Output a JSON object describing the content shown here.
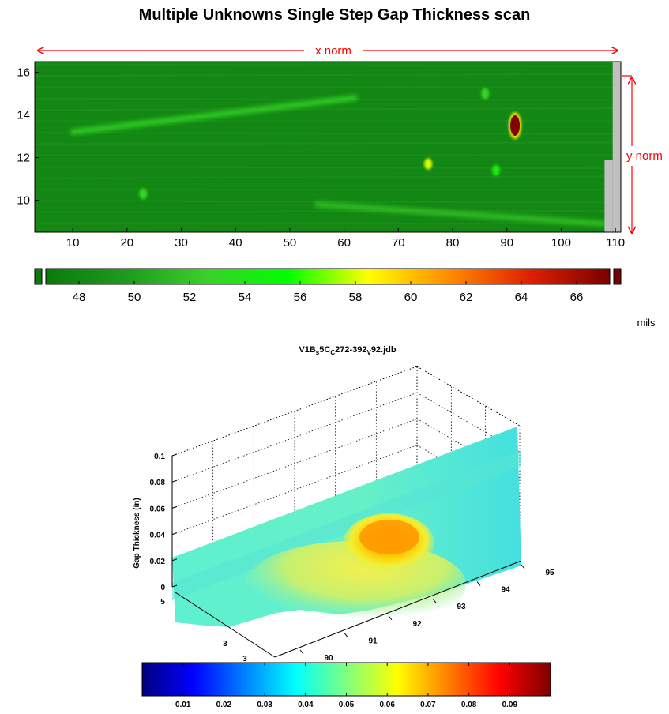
{
  "title": "Multiple Unknowns Single Step Gap Thickness scan",
  "colors": {
    "annotation": "#ff0000",
    "background_green": "#1a8f1a",
    "masked_area": "#c0c0c0"
  },
  "chart_data": [
    {
      "type": "heatmap",
      "title": "Multiple Unknowns Single Step Gap Thickness scan",
      "annotations": {
        "x_arrow": "x norm",
        "y_arrow": "y norm"
      },
      "x_ticks": [
        "10",
        "20",
        "30",
        "40",
        "50",
        "60",
        "70",
        "80",
        "90",
        "100",
        "110"
      ],
      "y_ticks": [
        "10",
        "12",
        "14",
        "16"
      ],
      "xlim": [
        3,
        111
      ],
      "ylim": [
        8.5,
        16.5
      ],
      "grid": false,
      "background_value": 48,
      "features": [
        {
          "kind": "streak",
          "x": [
            10,
            62
          ],
          "y": [
            13.2,
            14.8
          ],
          "value": 53
        },
        {
          "kind": "streak",
          "x": [
            55,
            108
          ],
          "y": [
            9.8,
            8.9
          ],
          "value": 52
        },
        {
          "kind": "spot",
          "x": 91.5,
          "y": 13.5,
          "value": 67
        },
        {
          "kind": "spot",
          "x": 75.5,
          "y": 11.7,
          "value": 58
        },
        {
          "kind": "spot",
          "x": 88,
          "y": 11.4,
          "value": 54
        },
        {
          "kind": "spot",
          "x": 23,
          "y": 10.3,
          "value": 53
        },
        {
          "kind": "spot",
          "x": 86,
          "y": 15,
          "value": 53
        }
      ],
      "masked_regions": [
        {
          "x": [
            109.5,
            111
          ],
          "y": [
            8.5,
            16.5
          ]
        },
        {
          "x": [
            108,
            109.5
          ],
          "y": [
            8.5,
            11.9
          ]
        }
      ],
      "colorbar": {
        "range": [
          46.8,
          67.2
        ],
        "ticks": [
          "48",
          "50",
          "52",
          "54",
          "56",
          "58",
          "60",
          "62",
          "64",
          "66"
        ],
        "unit": "mils",
        "stops": [
          "#0a7a0a",
          "#1f9a1f",
          "#3ccf2a",
          "#00ff00",
          "#ffff00",
          "#ff8c00",
          "#e02000",
          "#7a0000"
        ]
      }
    },
    {
      "type": "surface3d",
      "title_parts": [
        "V1B",
        "s",
        "5C",
        "C",
        "272-392",
        "V",
        "92.jdb"
      ],
      "zlabel": "Gap Thickness (in)",
      "z_ticks": [
        "0",
        "0.02",
        "0.04",
        "0.06",
        "0.08",
        "0.1"
      ],
      "x_ticks": [
        "90",
        "91",
        "92",
        "93",
        "94",
        "95"
      ],
      "y_ticks": [
        "5",
        "3",
        "3"
      ],
      "grid": true,
      "surface": {
        "base_value": 0.045,
        "peak_value": 0.07,
        "peak_x": 92.5
      },
      "colorbar": {
        "range": [
          0,
          0.1
        ],
        "ticks": [
          "0.01",
          "0.02",
          "0.03",
          "0.04",
          "0.05",
          "0.06",
          "0.07",
          "0.08",
          "0.09"
        ],
        "colormap": "jet"
      }
    }
  ]
}
